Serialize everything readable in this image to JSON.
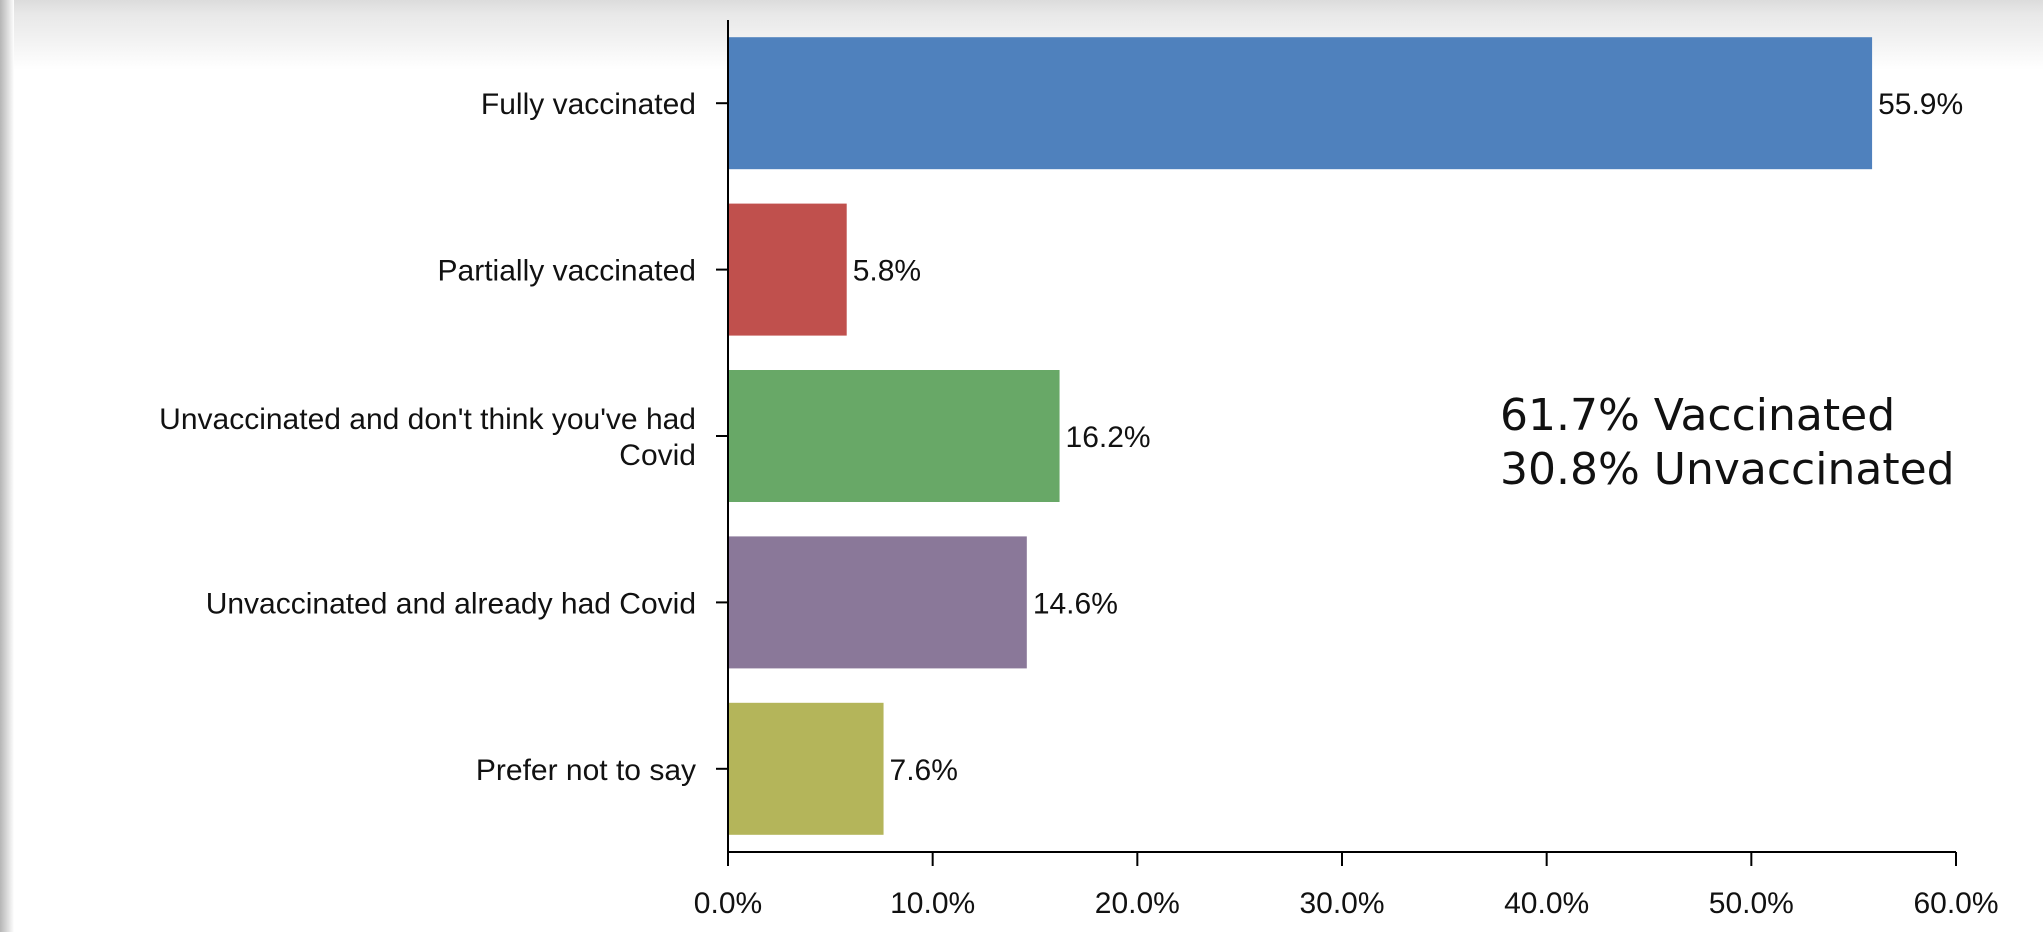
{
  "chart_data": {
    "type": "bar",
    "orientation": "horizontal",
    "title": "",
    "xlabel": "",
    "ylabel": "",
    "categories": [
      [
        "Fully vaccinated"
      ],
      [
        "Partially vaccinated"
      ],
      [
        "Unvaccinated and don't think you've had",
        "Covid"
      ],
      [
        "Unvaccinated and already had Covid"
      ],
      [
        "Prefer not to say"
      ]
    ],
    "values": [
      55.9,
      5.8,
      16.2,
      14.6,
      7.6
    ],
    "value_labels": [
      "55.9%",
      "5.8%",
      "16.2%",
      "14.6%",
      "7.6%"
    ],
    "colors": [
      "#4f81bd",
      "#c0504d",
      "#68a867",
      "#8a7899",
      "#b4b55a"
    ],
    "xlim": [
      0,
      60
    ],
    "ticks": [
      0,
      10,
      20,
      30,
      40,
      50,
      60
    ],
    "tick_labels": [
      "0.0%",
      "10.0%",
      "20.0%",
      "30.0%",
      "40.0%",
      "50.0%",
      "60.0%"
    ],
    "grid": false,
    "legend": "none",
    "annotations": [
      "61.7% Vaccinated",
      "30.8% Unvaccinated"
    ]
  }
}
